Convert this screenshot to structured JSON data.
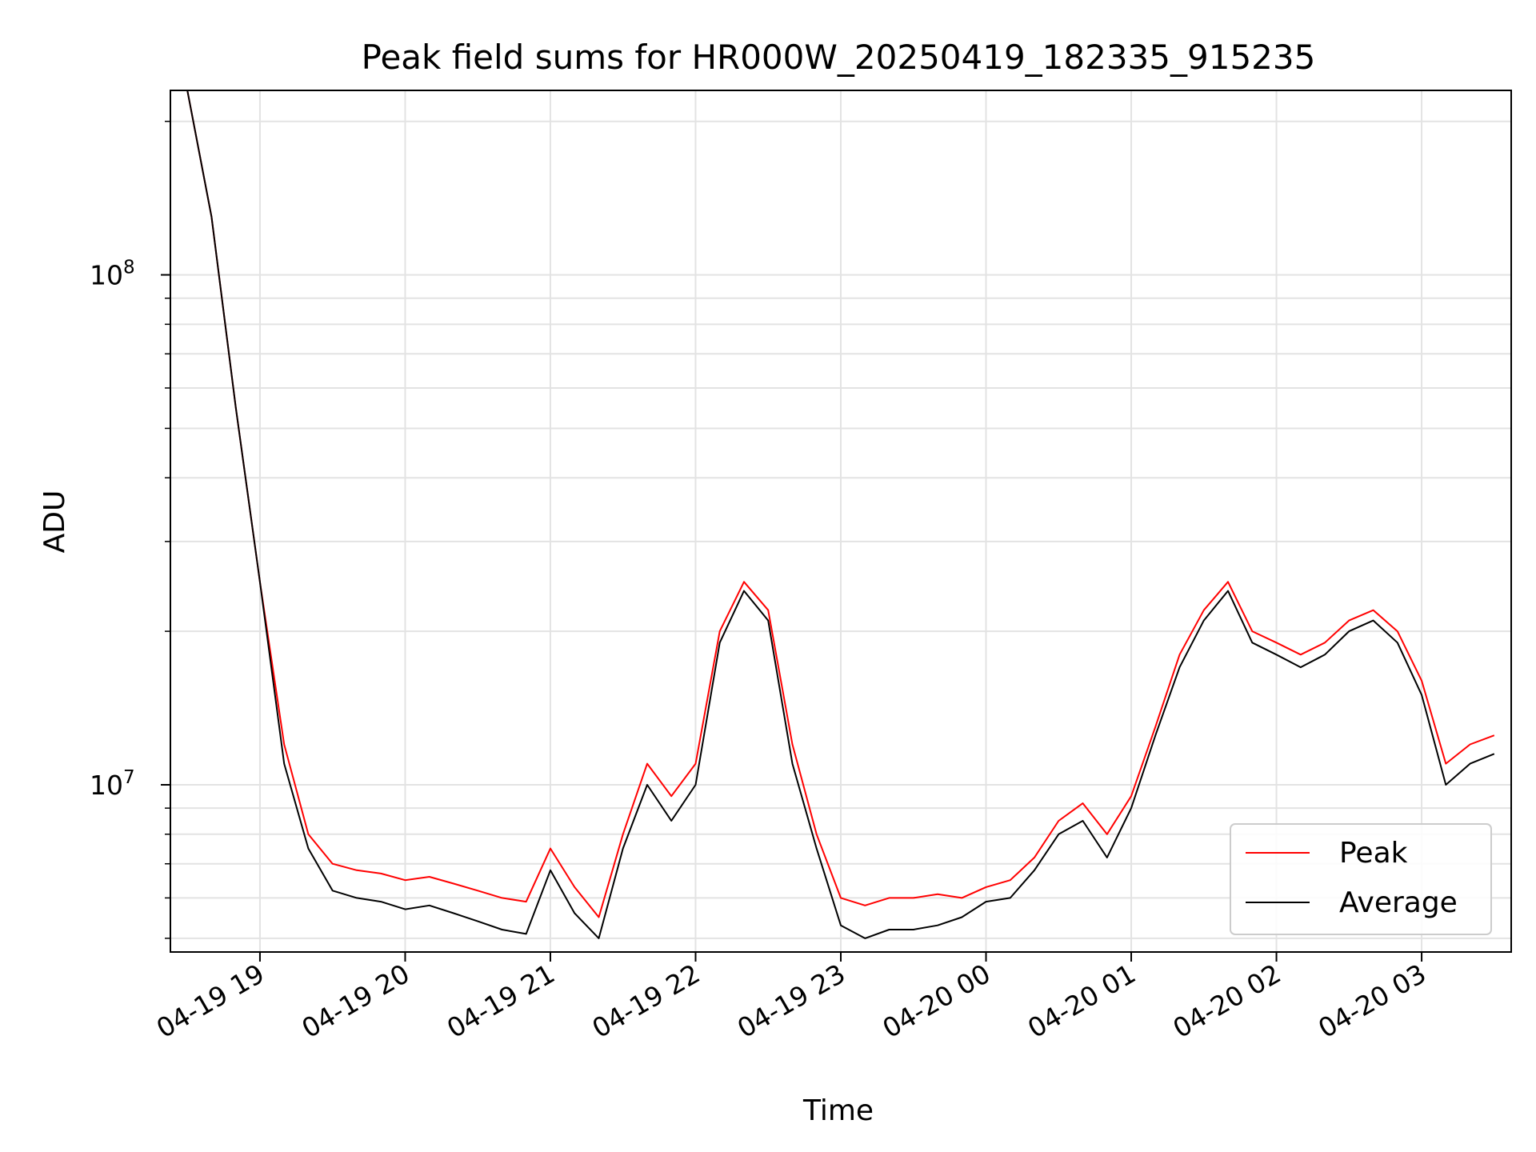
{
  "chart_data": {
    "type": "line",
    "title": "Peak field sums for HR000W_20250419_182335_915235",
    "xlabel": "Time",
    "ylabel": "ADU",
    "y_scale": "log",
    "ylim": [
      4700000,
      230000000
    ],
    "xlim": [
      "2025-04-19 18:23",
      "2025-04-20 03:37"
    ],
    "grid": true,
    "legend_position": "lower right",
    "x_ticks": [
      {
        "label": "04-19 19",
        "value": "2025-04-19 19:00"
      },
      {
        "label": "04-19 20",
        "value": "2025-04-19 20:00"
      },
      {
        "label": "04-19 21",
        "value": "2025-04-19 21:00"
      },
      {
        "label": "04-19 22",
        "value": "2025-04-19 22:00"
      },
      {
        "label": "04-19 23",
        "value": "2025-04-19 23:00"
      },
      {
        "label": "04-20 00",
        "value": "2025-04-20 00:00"
      },
      {
        "label": "04-20 01",
        "value": "2025-04-20 01:00"
      },
      {
        "label": "04-20 02",
        "value": "2025-04-20 02:00"
      },
      {
        "label": "04-20 03",
        "value": "2025-04-20 03:00"
      }
    ],
    "y_ticks": [
      {
        "base": "10",
        "exp": "7",
        "value": 10000000
      },
      {
        "base": "10",
        "exp": "8",
        "value": 100000000
      }
    ],
    "x": [
      "2025-04-19 18:30",
      "2025-04-19 18:40",
      "2025-04-19 18:50",
      "2025-04-19 19:00",
      "2025-04-19 19:10",
      "2025-04-19 19:20",
      "2025-04-19 19:30",
      "2025-04-19 19:40",
      "2025-04-19 19:50",
      "2025-04-19 20:00",
      "2025-04-19 20:10",
      "2025-04-19 20:20",
      "2025-04-19 20:30",
      "2025-04-19 20:40",
      "2025-04-19 20:50",
      "2025-04-19 21:00",
      "2025-04-19 21:10",
      "2025-04-19 21:20",
      "2025-04-19 21:30",
      "2025-04-19 21:40",
      "2025-04-19 21:50",
      "2025-04-19 22:00",
      "2025-04-19 22:10",
      "2025-04-19 22:20",
      "2025-04-19 22:30",
      "2025-04-19 22:40",
      "2025-04-19 22:50",
      "2025-04-19 23:00",
      "2025-04-19 23:10",
      "2025-04-19 23:20",
      "2025-04-19 23:30",
      "2025-04-19 23:40",
      "2025-04-19 23:50",
      "2025-04-20 00:00",
      "2025-04-20 00:10",
      "2025-04-20 00:20",
      "2025-04-20 00:30",
      "2025-04-20 00:40",
      "2025-04-20 00:50",
      "2025-04-20 01:00",
      "2025-04-20 01:10",
      "2025-04-20 01:20",
      "2025-04-20 01:30",
      "2025-04-20 01:40",
      "2025-04-20 01:50",
      "2025-04-20 02:00",
      "2025-04-20 02:10",
      "2025-04-20 02:20",
      "2025-04-20 02:30",
      "2025-04-20 02:40",
      "2025-04-20 02:50",
      "2025-04-20 03:00",
      "2025-04-20 03:10",
      "2025-04-20 03:20",
      "2025-04-20 03:30"
    ],
    "series": [
      {
        "name": "Peak",
        "color": "#ff0000",
        "values": [
          230000000,
          130000000,
          55000000,
          25000000,
          12000000,
          8000000,
          7000000,
          6800000,
          6700000,
          6500000,
          6600000,
          6400000,
          6200000,
          6000000,
          5900000,
          7500000,
          6300000,
          5500000,
          8000000,
          11000000,
          9500000,
          11000000,
          20000000,
          25000000,
          22000000,
          12000000,
          8000000,
          6000000,
          5800000,
          6000000,
          6000000,
          6100000,
          6000000,
          6300000,
          6500000,
          7200000,
          8500000,
          9200000,
          8000000,
          9500000,
          13000000,
          18000000,
          22000000,
          25000000,
          20000000,
          19000000,
          18000000,
          19000000,
          21000000,
          22000000,
          20000000,
          16000000,
          11000000,
          12000000,
          12500000
        ]
      },
      {
        "name": "Average",
        "color": "#000000",
        "values": [
          230000000,
          130000000,
          55000000,
          25000000,
          11000000,
          7500000,
          6200000,
          6000000,
          5900000,
          5700000,
          5800000,
          5600000,
          5400000,
          5200000,
          5100000,
          6800000,
          5600000,
          5000000,
          7500000,
          10000000,
          8500000,
          10000000,
          19000000,
          24000000,
          21000000,
          11000000,
          7500000,
          5300000,
          5000000,
          5200000,
          5200000,
          5300000,
          5500000,
          5900000,
          6000000,
          6800000,
          8000000,
          8500000,
          7200000,
          9000000,
          12500000,
          17000000,
          21000000,
          24000000,
          19000000,
          18000000,
          17000000,
          18000000,
          20000000,
          21000000,
          19000000,
          15000000,
          10000000,
          11000000,
          11500000
        ]
      }
    ]
  }
}
